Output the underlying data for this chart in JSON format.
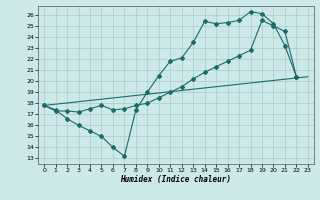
{
  "xlabel": "Humidex (Indice chaleur)",
  "bg_color": "#cce8e8",
  "grid_color": "#aacccc",
  "line_color": "#1a6b6b",
  "xlim": [
    -0.5,
    23.5
  ],
  "ylim": [
    12.5,
    26.8
  ],
  "yticks": [
    13,
    14,
    15,
    16,
    17,
    18,
    19,
    20,
    21,
    22,
    23,
    24,
    25,
    26
  ],
  "xticks": [
    0,
    1,
    2,
    3,
    4,
    5,
    6,
    7,
    8,
    9,
    10,
    11,
    12,
    13,
    14,
    15,
    16,
    17,
    18,
    19,
    20,
    21,
    22,
    23
  ],
  "line1_x": [
    0,
    1,
    2,
    3,
    4,
    5,
    6,
    7,
    8,
    9,
    10,
    11,
    12,
    13,
    14,
    15,
    16,
    17,
    18,
    19,
    20,
    21,
    22
  ],
  "line1_y": [
    17.8,
    17.4,
    16.6,
    16.0,
    15.5,
    15.0,
    14.0,
    13.2,
    17.4,
    19.0,
    20.5,
    21.8,
    22.1,
    23.5,
    25.4,
    25.2,
    25.3,
    25.5,
    26.3,
    26.1,
    25.2,
    23.2,
    20.4
  ],
  "line2_x": [
    0,
    1,
    2,
    3,
    4,
    5,
    6,
    7,
    8,
    9,
    10,
    11,
    12,
    13,
    14,
    15,
    16,
    17,
    18,
    19,
    20,
    21,
    22
  ],
  "line2_y": [
    17.8,
    17.3,
    17.3,
    17.2,
    17.5,
    17.8,
    17.4,
    17.5,
    17.8,
    18.0,
    18.5,
    19.0,
    19.5,
    20.2,
    20.8,
    21.3,
    21.8,
    22.3,
    22.8,
    25.5,
    25.0,
    24.5,
    20.4
  ],
  "line3_x": [
    0,
    23
  ],
  "line3_y": [
    17.8,
    20.4
  ]
}
